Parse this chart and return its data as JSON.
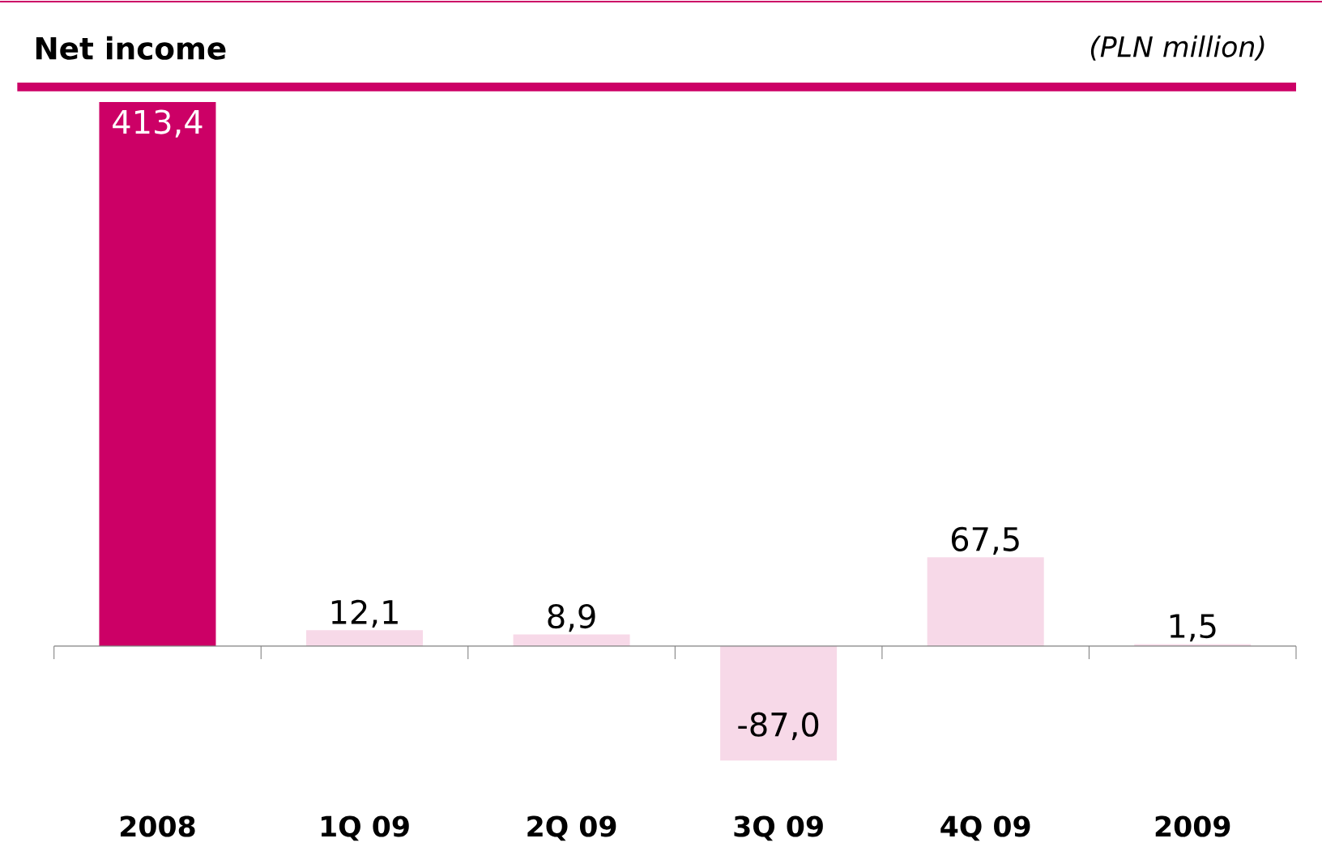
{
  "chart_data": {
    "type": "bar",
    "title": "Net income",
    "subtitle": "(PLN million)",
    "categories": [
      "2008",
      "1Q 09",
      "2Q 09",
      "3Q 09",
      "4Q 09",
      "2009"
    ],
    "values": [
      413.4,
      12.1,
      8.9,
      -87.0,
      67.5,
      1.5
    ],
    "value_labels": [
      "413,4",
      "12,1",
      "8,9",
      "-87,0",
      "67,5",
      "1,5"
    ],
    "colors": [
      "#cc0066",
      "#f7d9e8",
      "#f7d9e8",
      "#f7d9e8",
      "#f7d9e8",
      "#f7d9e8"
    ],
    "tick_labels": "x"
  }
}
